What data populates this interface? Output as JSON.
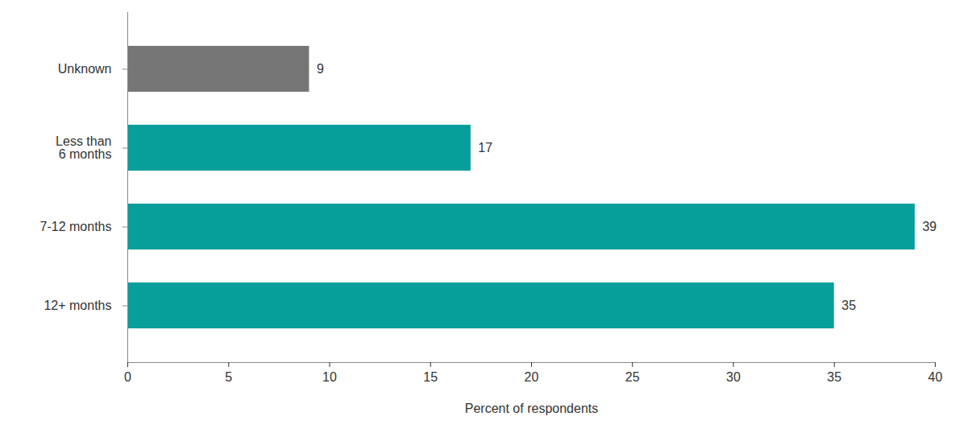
{
  "chart_data": {
    "type": "bar",
    "orientation": "horizontal",
    "categories": [
      "Unknown",
      "Less than 6 months",
      "7-12 months",
      "12+ months"
    ],
    "values": [
      9,
      17,
      39,
      35
    ],
    "colors": [
      "#767676",
      "#079e9c",
      "#079e9c",
      "#079e9c"
    ],
    "xlabel": "Percent of respondents",
    "xlim": [
      0,
      40
    ],
    "xticks": [
      0,
      5,
      10,
      15,
      20,
      25,
      30,
      35,
      40
    ],
    "grid": false,
    "data_labels": true
  }
}
